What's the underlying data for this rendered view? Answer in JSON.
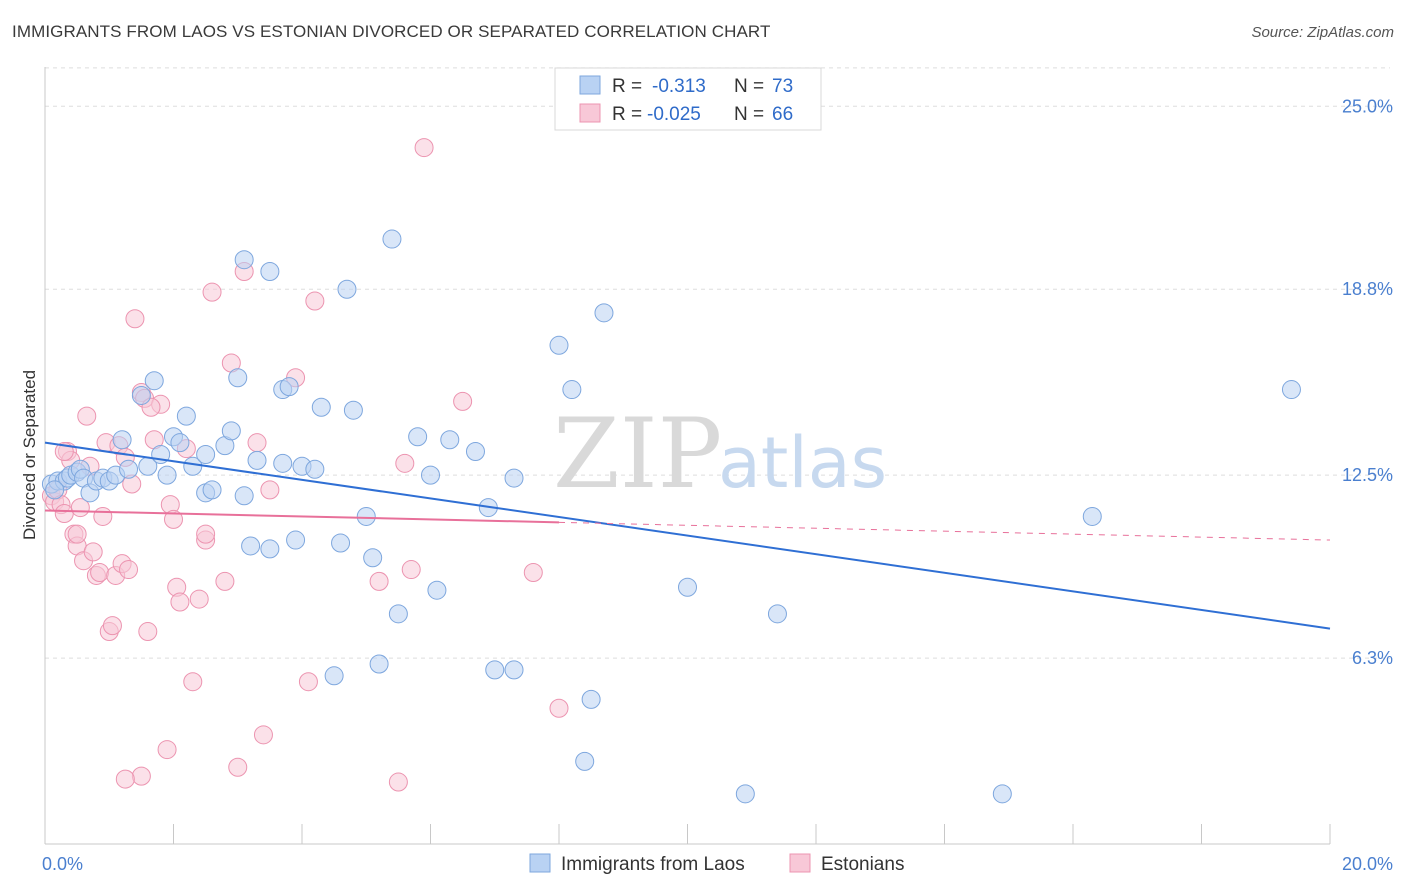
{
  "title": "IMMIGRANTS FROM LAOS VS ESTONIAN DIVORCED OR SEPARATED CORRELATION CHART",
  "source": "Source: ZipAtlas.com",
  "watermark": {
    "zip": "ZIP",
    "atlas": "atlas"
  },
  "colors": {
    "blue_fill": "#b9d2f3",
    "blue_stroke": "#7ea7de",
    "blue_line": "#2f6fd4",
    "pink_fill": "#f8c8d7",
    "pink_stroke": "#ec94b0",
    "pink_line": "#e8709a",
    "tick": "#4a7fcf",
    "grid": "#dddddd"
  },
  "legend": {
    "rows": [
      {
        "r_label": "R =",
        "r_value": "-0.313",
        "n_label": "N =",
        "n_value": "73"
      },
      {
        "r_label": "R =",
        "r_value": "-0.025",
        "n_label": "N =",
        "n_value": "66"
      }
    ]
  },
  "chart_data": {
    "type": "scatter",
    "title": "IMMIGRANTS FROM LAOS VS ESTONIAN DIVORCED OR SEPARATED CORRELATION CHART",
    "xlabel": "",
    "ylabel": "Divorced or Separated",
    "xlim": [
      0,
      20
    ],
    "ylim": [
      0,
      26.5
    ],
    "x_tick_labels": [
      "0.0%",
      "20.0%"
    ],
    "y_ticks": [
      6.3,
      12.5,
      18.8,
      25.0
    ],
    "y_tick_labels": [
      "6.3%",
      "12.5%",
      "18.8%",
      "25.0%"
    ],
    "grid": "horizontal dashed",
    "legend_position": "top-center",
    "series": [
      {
        "name": "Immigrants from Laos",
        "color": "#b9d2f3",
        "trend": {
          "x": [
            0,
            20
          ],
          "y": [
            13.6,
            7.3
          ],
          "style": "solid"
        },
        "points": [
          [
            0.1,
            12.2
          ],
          [
            0.2,
            12.3
          ],
          [
            0.3,
            12.3
          ],
          [
            0.35,
            12.4
          ],
          [
            0.4,
            12.5
          ],
          [
            0.5,
            12.6
          ],
          [
            0.55,
            12.7
          ],
          [
            0.6,
            12.4
          ],
          [
            0.7,
            11.9
          ],
          [
            0.8,
            12.3
          ],
          [
            0.9,
            12.4
          ],
          [
            1.0,
            12.3
          ],
          [
            1.1,
            12.5
          ],
          [
            1.2,
            13.7
          ],
          [
            1.3,
            12.7
          ],
          [
            1.5,
            15.2
          ],
          [
            1.6,
            12.8
          ],
          [
            1.7,
            15.7
          ],
          [
            1.8,
            13.2
          ],
          [
            1.9,
            12.5
          ],
          [
            2.0,
            13.8
          ],
          [
            2.1,
            13.6
          ],
          [
            2.2,
            14.5
          ],
          [
            2.3,
            12.8
          ],
          [
            2.5,
            13.2
          ],
          [
            2.5,
            11.9
          ],
          [
            2.6,
            12.0
          ],
          [
            2.8,
            13.5
          ],
          [
            2.9,
            14.0
          ],
          [
            3.0,
            15.8
          ],
          [
            3.1,
            11.8
          ],
          [
            3.1,
            19.8
          ],
          [
            3.2,
            10.1
          ],
          [
            3.3,
            13.0
          ],
          [
            3.5,
            10.0
          ],
          [
            3.5,
            19.4
          ],
          [
            3.7,
            12.9
          ],
          [
            3.7,
            15.4
          ],
          [
            3.8,
            15.5
          ],
          [
            3.9,
            10.3
          ],
          [
            4.0,
            12.8
          ],
          [
            4.2,
            12.7
          ],
          [
            4.3,
            14.8
          ],
          [
            4.5,
            5.7
          ],
          [
            4.6,
            10.2
          ],
          [
            4.7,
            18.8
          ],
          [
            4.8,
            14.7
          ],
          [
            5.0,
            11.1
          ],
          [
            5.1,
            9.7
          ],
          [
            5.2,
            6.1
          ],
          [
            5.4,
            20.5
          ],
          [
            5.5,
            7.8
          ],
          [
            5.8,
            13.8
          ],
          [
            6.0,
            12.5
          ],
          [
            6.1,
            8.6
          ],
          [
            6.3,
            13.7
          ],
          [
            6.7,
            13.3
          ],
          [
            6.9,
            11.4
          ],
          [
            7.0,
            5.9
          ],
          [
            7.3,
            12.4
          ],
          [
            7.3,
            5.9
          ],
          [
            8.0,
            16.9
          ],
          [
            8.2,
            15.4
          ],
          [
            8.4,
            2.8
          ],
          [
            8.5,
            4.9
          ],
          [
            8.7,
            18.0
          ],
          [
            10.0,
            8.7
          ],
          [
            10.9,
            1.7
          ],
          [
            11.4,
            7.8
          ],
          [
            14.9,
            1.7
          ],
          [
            16.3,
            11.1
          ],
          [
            19.4,
            15.4
          ],
          [
            0.15,
            12.0
          ]
        ]
      },
      {
        "name": "Estonians",
        "color": "#f8c8d7",
        "trend": {
          "x": [
            0,
            8.0
          ],
          "y": [
            11.3,
            10.9
          ],
          "style": "solid",
          "extended_to": [
            20,
            10.3
          ],
          "extended_style": "dashed"
        },
        "points": [
          [
            0.1,
            11.8
          ],
          [
            0.15,
            11.6
          ],
          [
            0.2,
            12.0
          ],
          [
            0.25,
            11.5
          ],
          [
            0.3,
            11.2
          ],
          [
            0.35,
            13.3
          ],
          [
            0.4,
            13.0
          ],
          [
            0.45,
            10.5
          ],
          [
            0.5,
            10.1
          ],
          [
            0.55,
            11.4
          ],
          [
            0.6,
            9.6
          ],
          [
            0.65,
            14.5
          ],
          [
            0.7,
            12.8
          ],
          [
            0.75,
            9.9
          ],
          [
            0.8,
            9.1
          ],
          [
            0.85,
            9.2
          ],
          [
            0.9,
            11.1
          ],
          [
            0.95,
            13.6
          ],
          [
            1.0,
            7.2
          ],
          [
            1.05,
            7.4
          ],
          [
            1.1,
            9.1
          ],
          [
            1.15,
            13.5
          ],
          [
            1.2,
            9.5
          ],
          [
            1.25,
            13.1
          ],
          [
            1.3,
            9.3
          ],
          [
            1.35,
            12.2
          ],
          [
            1.4,
            17.8
          ],
          [
            1.5,
            15.3
          ],
          [
            1.5,
            2.3
          ],
          [
            1.55,
            15.1
          ],
          [
            1.6,
            7.2
          ],
          [
            1.7,
            13.7
          ],
          [
            1.8,
            14.9
          ],
          [
            1.9,
            3.2
          ],
          [
            1.95,
            11.5
          ],
          [
            2.0,
            11.0
          ],
          [
            2.05,
            8.7
          ],
          [
            2.1,
            8.2
          ],
          [
            2.2,
            13.4
          ],
          [
            2.3,
            5.5
          ],
          [
            2.4,
            8.3
          ],
          [
            2.5,
            10.3
          ],
          [
            2.5,
            10.5
          ],
          [
            2.6,
            18.7
          ],
          [
            2.8,
            8.9
          ],
          [
            2.9,
            16.3
          ],
          [
            3.0,
            2.6
          ],
          [
            3.1,
            19.4
          ],
          [
            3.3,
            13.6
          ],
          [
            3.4,
            3.7
          ],
          [
            3.5,
            12.0
          ],
          [
            3.9,
            15.8
          ],
          [
            4.1,
            5.5
          ],
          [
            4.2,
            18.4
          ],
          [
            5.2,
            8.9
          ],
          [
            5.5,
            2.1
          ],
          [
            5.6,
            12.9
          ],
          [
            5.7,
            9.3
          ],
          [
            5.9,
            23.6
          ],
          [
            6.5,
            15.0
          ],
          [
            7.6,
            9.2
          ],
          [
            8.0,
            4.6
          ],
          [
            1.25,
            2.2
          ],
          [
            0.5,
            10.5
          ],
          [
            0.3,
            13.3
          ],
          [
            1.65,
            14.8
          ]
        ]
      }
    ]
  },
  "bottom_legend": [
    "Immigrants from Laos",
    "Estonians"
  ]
}
